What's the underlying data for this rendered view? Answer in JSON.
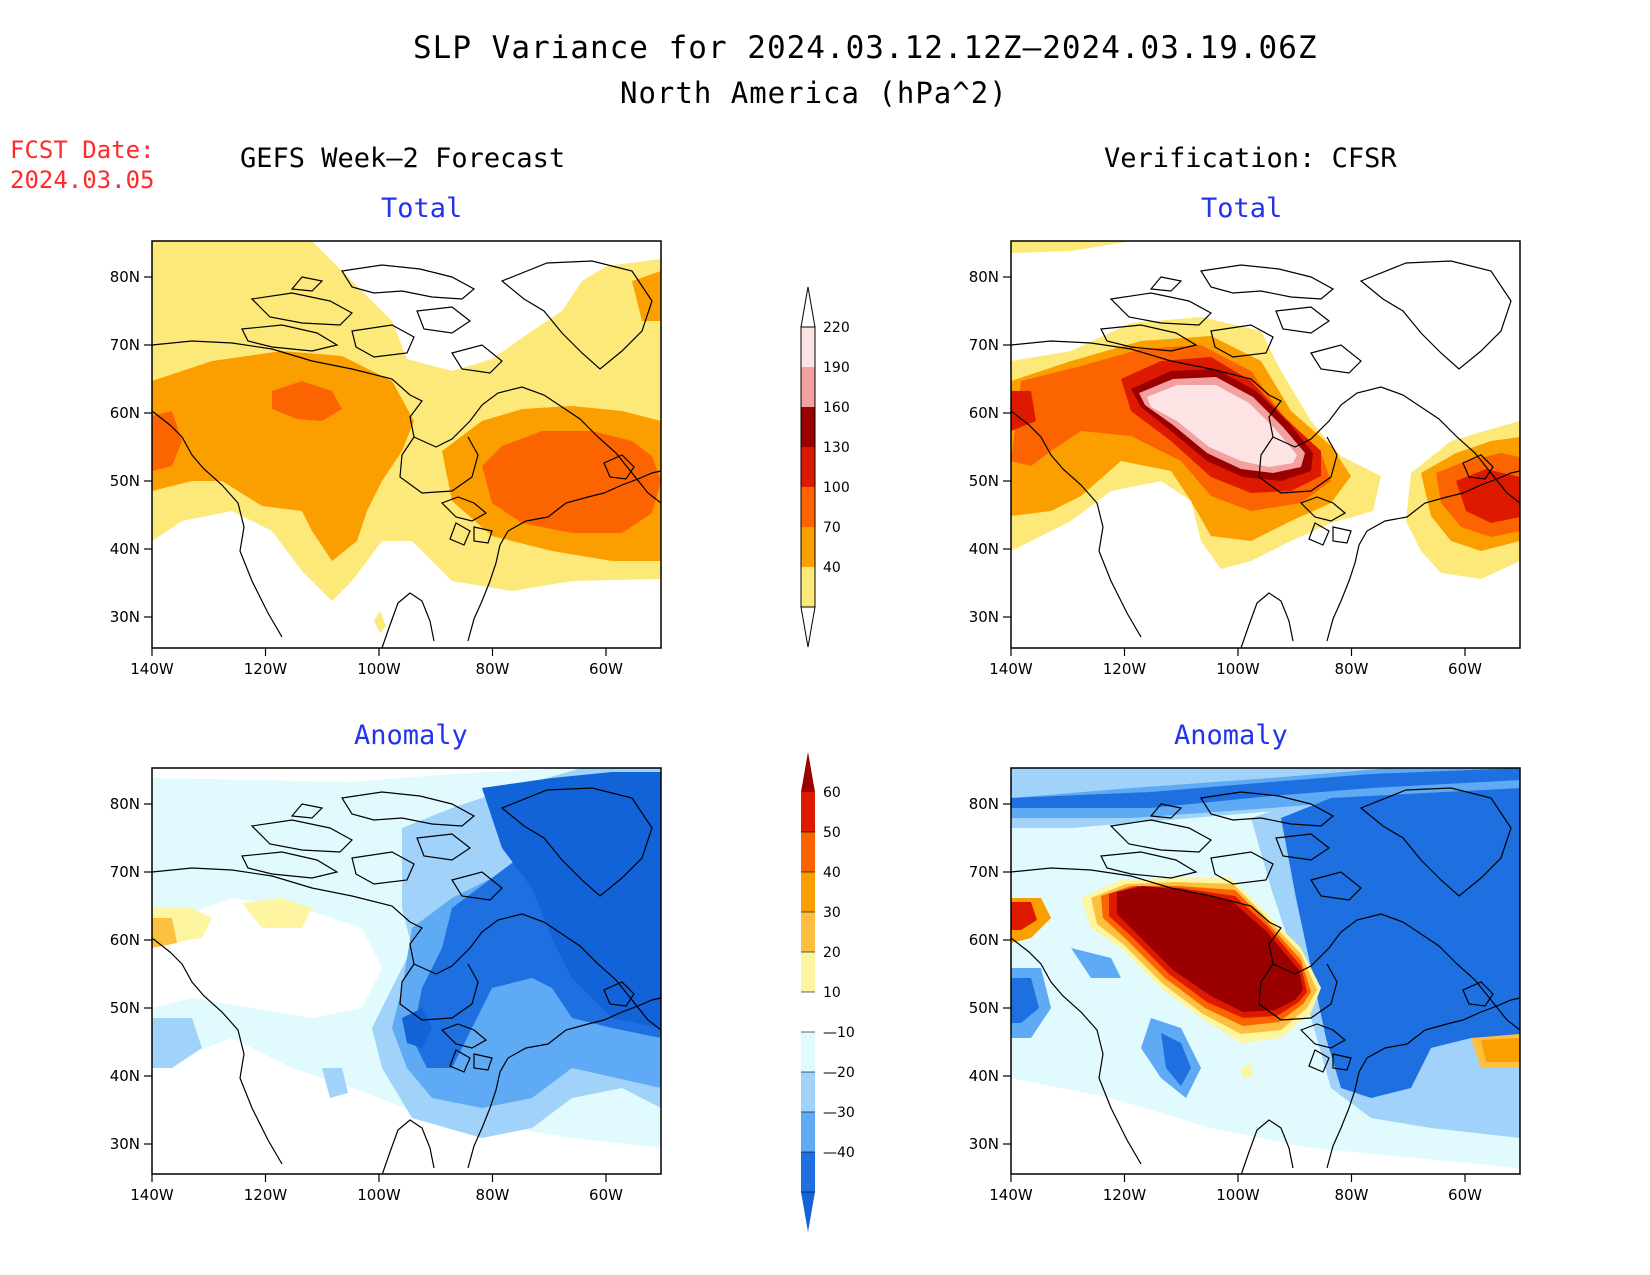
{
  "title": "SLP Variance for 2024.03.12.12Z—2024.03.19.06Z",
  "subtitle": "North America (hPa^2)",
  "fcst": {
    "line1": "FCST Date:",
    "line2": "2024.03.05"
  },
  "columns": {
    "left": "GEFS Week—2 Forecast",
    "right": "Verification: CFSR"
  },
  "panel_labels": {
    "total": "Total",
    "anomaly": "Anomaly"
  },
  "axes": {
    "lon_ticks": [
      "140W",
      "120W",
      "100W",
      "80W",
      "60W"
    ],
    "lat_ticks": [
      "80N",
      "70N",
      "60N",
      "50N",
      "40N",
      "30N"
    ]
  },
  "colorbar_total": {
    "levels": [
      "220",
      "190",
      "160",
      "130",
      "100",
      "70",
      "40"
    ],
    "colors": [
      "#fde3e3",
      "#f3a0a0",
      "#9a0000",
      "#dd1a00",
      "#fb6400",
      "#fb9f00",
      "#fde87a"
    ]
  },
  "colorbar_anomaly": {
    "levels": [
      "60",
      "50",
      "40",
      "30",
      "20",
      "10",
      "—10",
      "—20",
      "—30",
      "—40"
    ],
    "colors": [
      "#9a0000",
      "#dd1a00",
      "#fb6400",
      "#fb9f00",
      "#fdbf40",
      "#fdf5a0",
      "#ffffff",
      "#e1fafd",
      "#a0d2fa",
      "#5eaaf4",
      "#1e6fe0",
      "#1262d8"
    ]
  },
  "colors": {
    "fcst_date": "#ff2a2a",
    "panel_title": "#2233ee"
  }
}
